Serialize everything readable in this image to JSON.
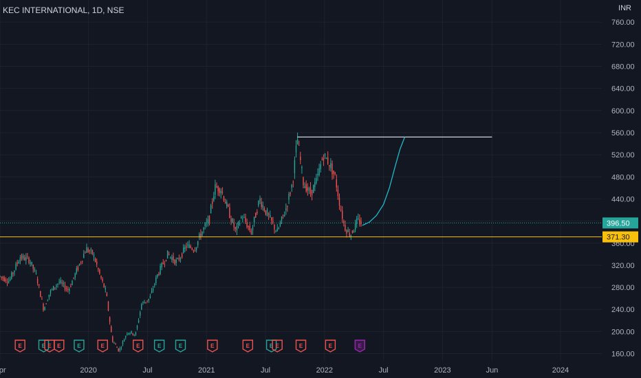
{
  "header": {
    "title": "KEC INTERNATIONAL, 1D, NSE",
    "currency": "INR"
  },
  "chart_data": {
    "type": "candlestick",
    "symbol": "KEC INTERNATIONAL",
    "interval": "1D",
    "exchange": "NSE",
    "currency": "INR",
    "ylim": [
      147,
      800
    ],
    "y_ticks": [
      "760.00",
      "720.00",
      "680.00",
      "640.00",
      "600.00",
      "560.00",
      "520.00",
      "480.00",
      "440.00",
      "400.00",
      "360.00",
      "320.00",
      "280.00",
      "240.00",
      "200.00",
      "160.00"
    ],
    "x_ticks": [
      {
        "label": "Apr",
        "t": 2019.25
      },
      {
        "label": "2020",
        "t": 2020.0
      },
      {
        "label": "Jul",
        "t": 2020.5
      },
      {
        "label": "2021",
        "t": 2021.0
      },
      {
        "label": "Jul",
        "t": 2021.5
      },
      {
        "label": "2022",
        "t": 2022.0
      },
      {
        "label": "Jul",
        "t": 2022.5
      },
      {
        "label": "2023",
        "t": 2023.0
      },
      {
        "label": "Jun",
        "t": 2023.42
      },
      {
        "label": "2024",
        "t": 2024.0
      }
    ],
    "xlim": [
      2019.25,
      2024.35
    ],
    "price_path": [
      [
        2019.25,
        300
      ],
      [
        2019.33,
        292
      ],
      [
        2019.42,
        335
      ],
      [
        2019.5,
        330
      ],
      [
        2019.56,
        300
      ],
      [
        2019.62,
        240
      ],
      [
        2019.67,
        270
      ],
      [
        2019.75,
        290
      ],
      [
        2019.83,
        275
      ],
      [
        2019.92,
        320
      ],
      [
        2019.98,
        350
      ],
      [
        2020.04,
        340
      ],
      [
        2020.1,
        300
      ],
      [
        2020.15,
        270
      ],
      [
        2020.2,
        185
      ],
      [
        2020.26,
        165
      ],
      [
        2020.33,
        200
      ],
      [
        2020.4,
        195
      ],
      [
        2020.45,
        250
      ],
      [
        2020.52,
        260
      ],
      [
        2020.58,
        300
      ],
      [
        2020.67,
        340
      ],
      [
        2020.75,
        325
      ],
      [
        2020.83,
        355
      ],
      [
        2020.9,
        350
      ],
      [
        2020.96,
        380
      ],
      [
        2021.02,
        400
      ],
      [
        2021.07,
        460
      ],
      [
        2021.12,
        460
      ],
      [
        2021.2,
        410
      ],
      [
        2021.25,
        380
      ],
      [
        2021.3,
        410
      ],
      [
        2021.38,
        380
      ],
      [
        2021.45,
        440
      ],
      [
        2021.52,
        410
      ],
      [
        2021.6,
        380
      ],
      [
        2021.67,
        420
      ],
      [
        2021.73,
        470
      ],
      [
        2021.77,
        550
      ],
      [
        2021.82,
        470
      ],
      [
        2021.88,
        450
      ],
      [
        2021.93,
        470
      ],
      [
        2021.99,
        520
      ],
      [
        2022.04,
        505
      ],
      [
        2022.09,
        480
      ],
      [
        2022.13,
        430
      ],
      [
        2022.17,
        390
      ],
      [
        2022.22,
        375
      ],
      [
        2022.28,
        400
      ],
      [
        2022.32,
        396.5
      ]
    ],
    "projection": [
      [
        2022.32,
        392
      ],
      [
        2022.38,
        398
      ],
      [
        2022.44,
        410
      ],
      [
        2022.5,
        430
      ],
      [
        2022.55,
        460
      ],
      [
        2022.6,
        500
      ],
      [
        2022.64,
        530
      ],
      [
        2022.68,
        552
      ]
    ],
    "resistance_line": {
      "value": 552,
      "from": 2021.77,
      "to": 2023.42
    },
    "support_line": {
      "value": 371.3
    },
    "last_price": {
      "value": 396.5,
      "label": "396.50"
    },
    "support_label": {
      "value": 371.3,
      "label": "371.30"
    },
    "earnings_markers": [
      {
        "t": 2019.42,
        "label": "E",
        "status": "negative"
      },
      {
        "t": 2019.62,
        "label": "E",
        "status": "positive"
      },
      {
        "t": 2019.67,
        "label": "E",
        "status": "negative"
      },
      {
        "t": 2019.75,
        "label": "E",
        "status": "negative"
      },
      {
        "t": 2019.92,
        "label": "E",
        "status": "positive"
      },
      {
        "t": 2020.12,
        "label": "E",
        "status": "negative"
      },
      {
        "t": 2020.42,
        "label": "E",
        "status": "negative"
      },
      {
        "t": 2020.6,
        "label": "E",
        "status": "positive"
      },
      {
        "t": 2020.78,
        "label": "E",
        "status": "positive"
      },
      {
        "t": 2021.05,
        "label": "E",
        "status": "negative"
      },
      {
        "t": 2021.35,
        "label": "E",
        "status": "negative"
      },
      {
        "t": 2021.55,
        "label": "E",
        "status": "positive"
      },
      {
        "t": 2021.6,
        "label": "E",
        "status": "negative"
      },
      {
        "t": 2021.8,
        "label": "E",
        "status": "negative"
      },
      {
        "t": 2022.05,
        "label": "E",
        "status": "negative"
      },
      {
        "t": 2022.3,
        "label": "E",
        "status": "upcoming"
      }
    ],
    "colors": {
      "up": "#26a69a",
      "down": "#ef5350",
      "background": "#131722",
      "grid": "#1e222d",
      "axis_text": "#b2b5be",
      "resistance": "#d1d4dc",
      "support": "#f9c00b",
      "last_price": "#26a69a",
      "projection": "#22b8c8",
      "upcoming": "#9c27b0"
    }
  }
}
